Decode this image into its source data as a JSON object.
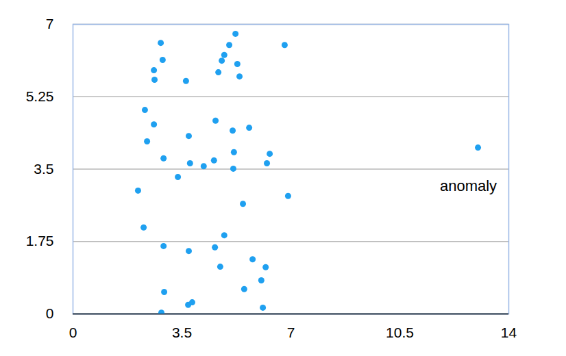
{
  "chart_data": {
    "type": "scatter",
    "color": "#1fa0f0",
    "grid": true,
    "xlim": [
      0,
      14
    ],
    "xticks": [
      0,
      3.5,
      7,
      10.5,
      14
    ],
    "ylim": [
      0,
      7
    ],
    "yticks": [
      0,
      1.75,
      3.5,
      5.25,
      7
    ],
    "annotations": [
      {
        "text": "anomaly"
      }
    ],
    "x": [
      2.82,
      2.88,
      2.6,
      2.62,
      3.63,
      5.22,
      5.02,
      4.86,
      4.78,
      5.28,
      4.67,
      5.35,
      6.8,
      2.31,
      2.6,
      2.38,
      3.72,
      4.58,
      5.13,
      5.66,
      5.17,
      6.32,
      2.91,
      3.76,
      4.2,
      4.53,
      5.15,
      6.23,
      3.37,
      2.09,
      5.46,
      6.91,
      13.01,
      2.27,
      4.86,
      2.91,
      3.72,
      4.56,
      5.77,
      4.73,
      6.19,
      6.05,
      5.5,
      2.93,
      3.83,
      3.7,
      6.1,
      2.84
    ],
    "values": [
      6.55,
      6.14,
      5.89,
      5.66,
      5.63,
      6.77,
      6.5,
      6.26,
      6.12,
      6.04,
      5.84,
      5.74,
      6.5,
      4.93,
      4.58,
      4.17,
      4.3,
      4.67,
      4.43,
      4.5,
      3.91,
      3.87,
      3.76,
      3.64,
      3.57,
      3.71,
      3.51,
      3.64,
      3.31,
      2.98,
      2.66,
      2.85,
      4.02,
      2.09,
      1.9,
      1.64,
      1.52,
      1.61,
      1.32,
      1.14,
      1.13,
      0.81,
      0.6,
      0.53,
      0.28,
      0.22,
      0.15,
      0.03
    ]
  }
}
